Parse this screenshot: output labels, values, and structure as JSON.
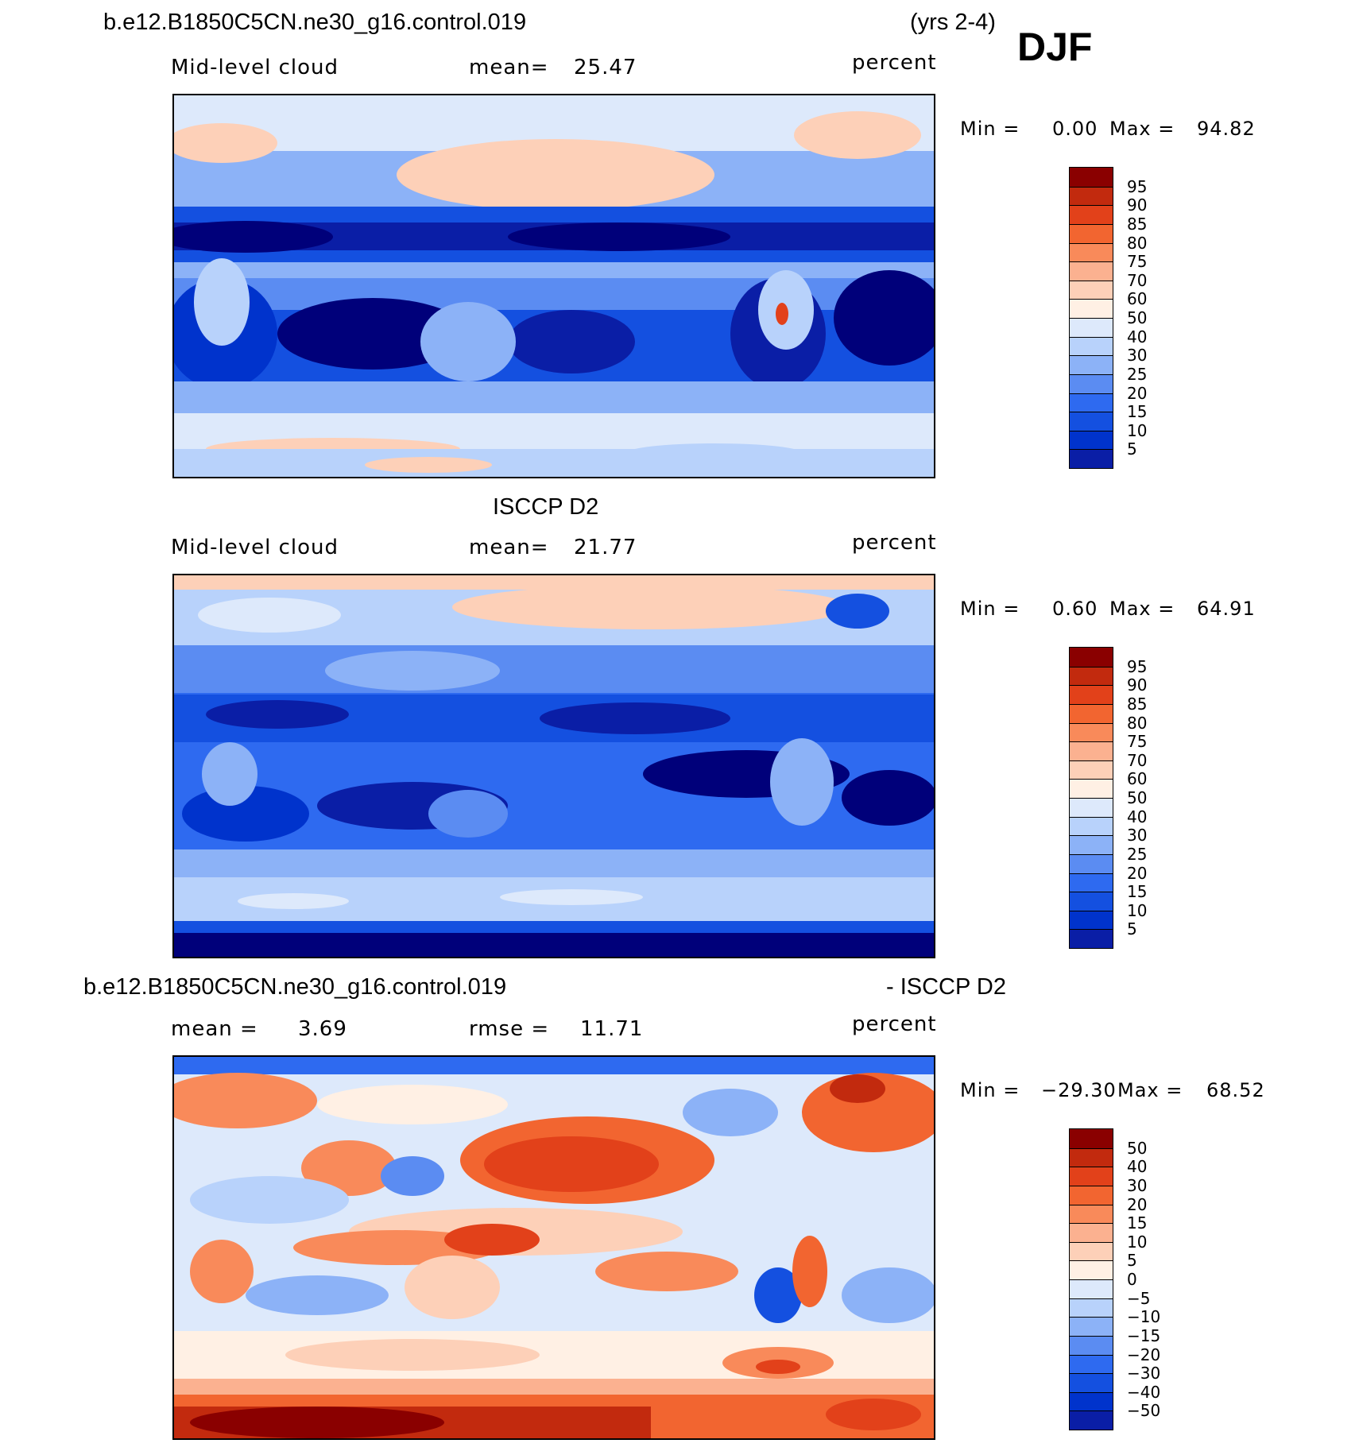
{
  "header": {
    "case_name": "b.e12.B1850C5CN.ne30_g16.control.019",
    "years": "(yrs 2-4)",
    "season": "DJF"
  },
  "colors": {
    "abs_scale": [
      "#00007a",
      "#0a1ea6",
      "#0033cc",
      "#1450e0",
      "#2e6af0",
      "#5b8cf2",
      "#8cb2f7",
      "#b8d2fb",
      "#dde9fb",
      "#fff0e4",
      "#fdd0b8",
      "#fbb190",
      "#f98a5a",
      "#f26530",
      "#e2411a",
      "#c22a0e",
      "#8a0000"
    ],
    "diff_scale": [
      "#00007a",
      "#0a1ea6",
      "#0033cc",
      "#1450e0",
      "#2e6af0",
      "#5b8cf2",
      "#8cb2f7",
      "#b8d2fb",
      "#dde9fb",
      "#fff0e4",
      "#fdd0b8",
      "#fbb190",
      "#f98a5a",
      "#f26530",
      "#e2411a",
      "#c22a0e",
      "#8a0000"
    ]
  },
  "panels": [
    {
      "id": "model",
      "variable": "Mid-level cloud",
      "mean_label": "mean=",
      "mean_value": "25.47",
      "units": "percent",
      "min_label": "Min =",
      "min_value": "0.00",
      "max_label": "Max =",
      "max_value": "94.82",
      "colorbar_labels": [
        "95",
        "90",
        "85",
        "80",
        "75",
        "70",
        "60",
        "50",
        "40",
        "30",
        "25",
        "20",
        "15",
        "10",
        "5"
      ]
    },
    {
      "id": "obs",
      "title": "ISCCP D2",
      "variable": "Mid-level cloud",
      "mean_label": "mean=",
      "mean_value": "21.77",
      "units": "percent",
      "min_label": "Min =",
      "min_value": "0.60",
      "max_label": "Max =",
      "max_value": "64.91",
      "colorbar_labels": [
        "95",
        "90",
        "85",
        "80",
        "75",
        "70",
        "60",
        "50",
        "40",
        "30",
        "25",
        "20",
        "15",
        "10",
        "5"
      ]
    },
    {
      "id": "diff",
      "title_left": "b.e12.B1850C5CN.ne30_g16.control.019",
      "title_right": "- ISCCP D2",
      "mean_label": "mean =",
      "mean_value": "3.69",
      "rmse_label": "rmse =",
      "rmse_value": "11.71",
      "units": "percent",
      "min_label": "Min =",
      "min_value": "−29.30",
      "max_label": "Max =",
      "max_value": "68.52",
      "colorbar_labels": [
        "50",
        "40",
        "30",
        "20",
        "15",
        "10",
        "5",
        "0",
        "−5",
        "−10",
        "−15",
        "−20",
        "−30",
        "−40",
        "−50"
      ]
    }
  ]
}
